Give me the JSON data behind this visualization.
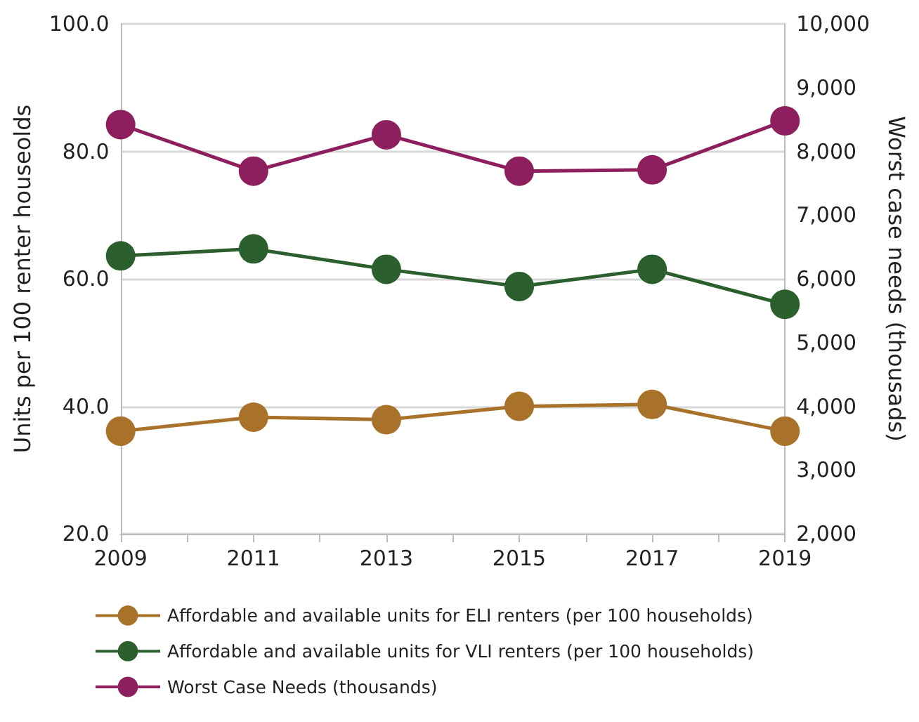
{
  "chart_data": {
    "type": "line",
    "ylabel": "Units per 100 renter houseolds",
    "y2label": "Worst case needs (thousads)",
    "x": [
      2009,
      2011,
      2013,
      2015,
      2017,
      2019
    ],
    "xlim": [
      2009,
      2019
    ],
    "xticks": [
      2009,
      {
        "value": 2010,
        "label": null
      },
      2011,
      {
        "value": 2012,
        "label": null
      },
      2013,
      {
        "value": 2014,
        "label": null
      },
      2015,
      {
        "value": 2016,
        "label": null
      },
      2017,
      {
        "value": 2018,
        "label": null
      },
      2019
    ],
    "ylim": [
      20,
      100
    ],
    "yticks": [
      {
        "value": 20,
        "label": "20.0"
      },
      {
        "value": 40,
        "label": "40.0"
      },
      {
        "value": 60,
        "label": "60.0"
      },
      {
        "value": 80,
        "label": "80.0"
      },
      {
        "value": 100,
        "label": "100.0"
      }
    ],
    "y2lim": [
      2000,
      10000
    ],
    "y2ticks": [
      {
        "value": 2000,
        "label": "2,000"
      },
      {
        "value": 3000,
        "label": "3,000"
      },
      {
        "value": 4000,
        "label": "4,000"
      },
      {
        "value": 5000,
        "label": "5,000"
      },
      {
        "value": 6000,
        "label": "6,000"
      },
      {
        "value": 7000,
        "label": "7,000"
      },
      {
        "value": 8000,
        "label": "8,000"
      },
      {
        "value": 9000,
        "label": "9,000"
      },
      {
        "value": 10000,
        "label": "10,000"
      }
    ],
    "series": [
      {
        "name": "Affordable and available units for ELI renters (per 100 households)",
        "color": "#a8722a",
        "values": [
          36.1,
          38.3,
          37.9,
          40.0,
          40.3,
          36.1
        ]
      },
      {
        "name": "Affordable and available units for VLI renters (per 100 households)",
        "color": "#2b5f2e",
        "values": [
          63.6,
          64.7,
          61.5,
          58.8,
          61.5,
          56.0
        ]
      },
      {
        "name": "Worst Case Needs (thousands)",
        "color": "#8e1f5e",
        "axis": "y2",
        "values": [
          8420,
          7690,
          8260,
          7690,
          7710,
          8480
        ]
      }
    ],
    "grid": "y",
    "legend": "bottom",
    "marker": "circle",
    "line_style": "solid"
  }
}
